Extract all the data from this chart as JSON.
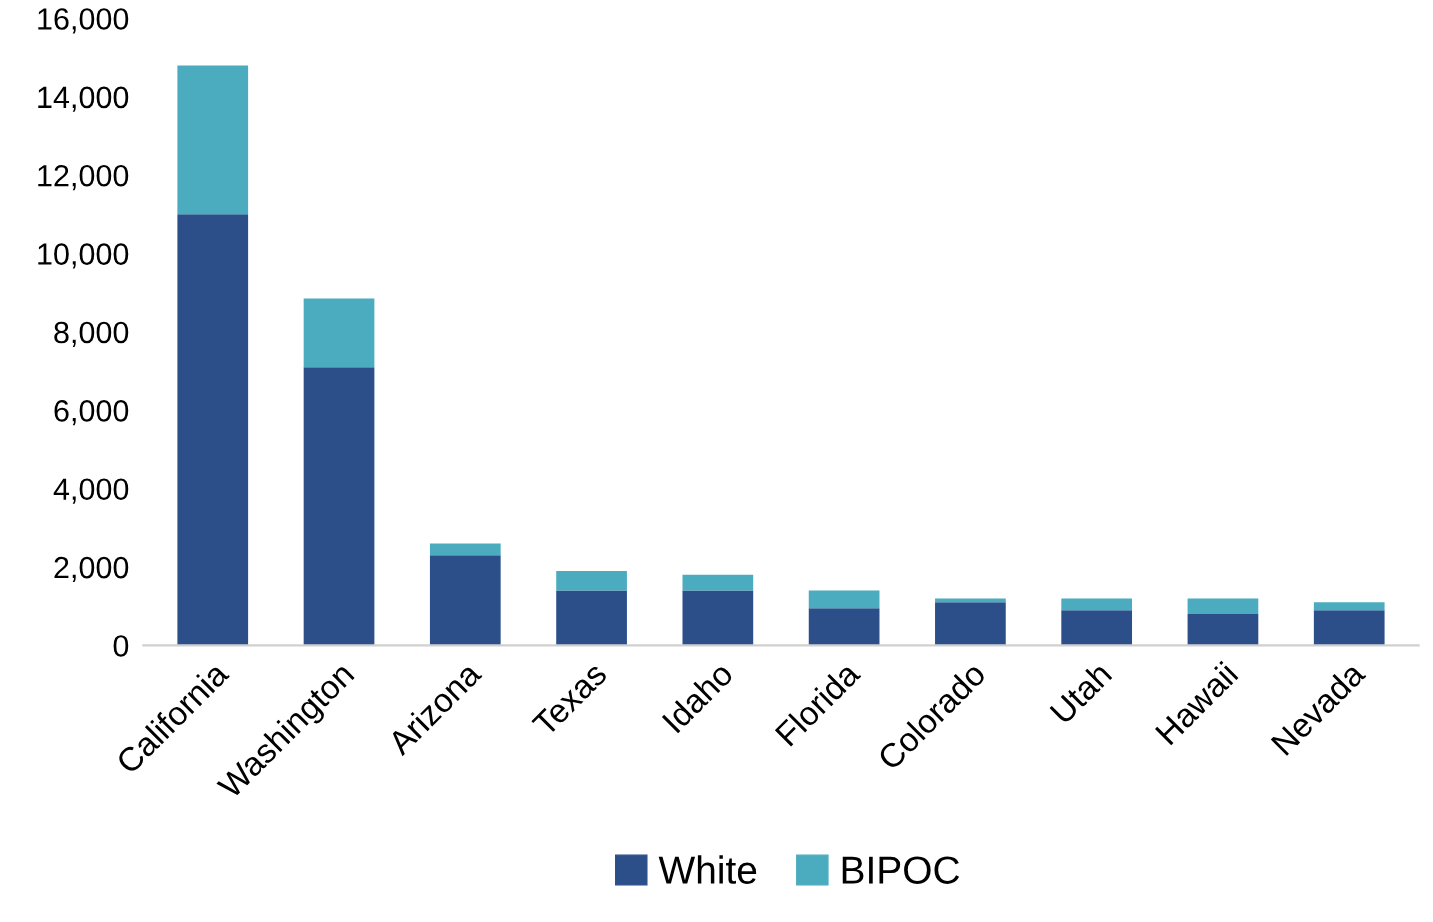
{
  "chart_data": {
    "type": "bar",
    "stacked": true,
    "categories": [
      "California",
      "Washington",
      "Arizona",
      "Texas",
      "Idaho",
      "Florida",
      "Colorado",
      "Utah",
      "Hawaii",
      "Nevada"
    ],
    "series": [
      {
        "name": "White",
        "color": "#2c4f8a",
        "values": [
          11000,
          7100,
          2300,
          1400,
          1400,
          950,
          1100,
          900,
          800,
          900
        ]
      },
      {
        "name": "BIPOC",
        "color": "#4aacbe",
        "values": [
          3800,
          1750,
          300,
          500,
          400,
          450,
          100,
          300,
          400,
          200
        ]
      }
    ],
    "ylim": [
      0,
      16000
    ],
    "yticks": [
      {
        "value": 0,
        "label": "0"
      },
      {
        "value": 2000,
        "label": "2,000"
      },
      {
        "value": 4000,
        "label": "4,000"
      },
      {
        "value": 6000,
        "label": "6,000"
      },
      {
        "value": 8000,
        "label": "8,000"
      },
      {
        "value": 10000,
        "label": "10,000"
      },
      {
        "value": 12000,
        "label": "12,000"
      },
      {
        "value": 14000,
        "label": "14,000"
      },
      {
        "value": 16000,
        "label": "16,000"
      }
    ],
    "grid": false,
    "legend": "bottom"
  }
}
